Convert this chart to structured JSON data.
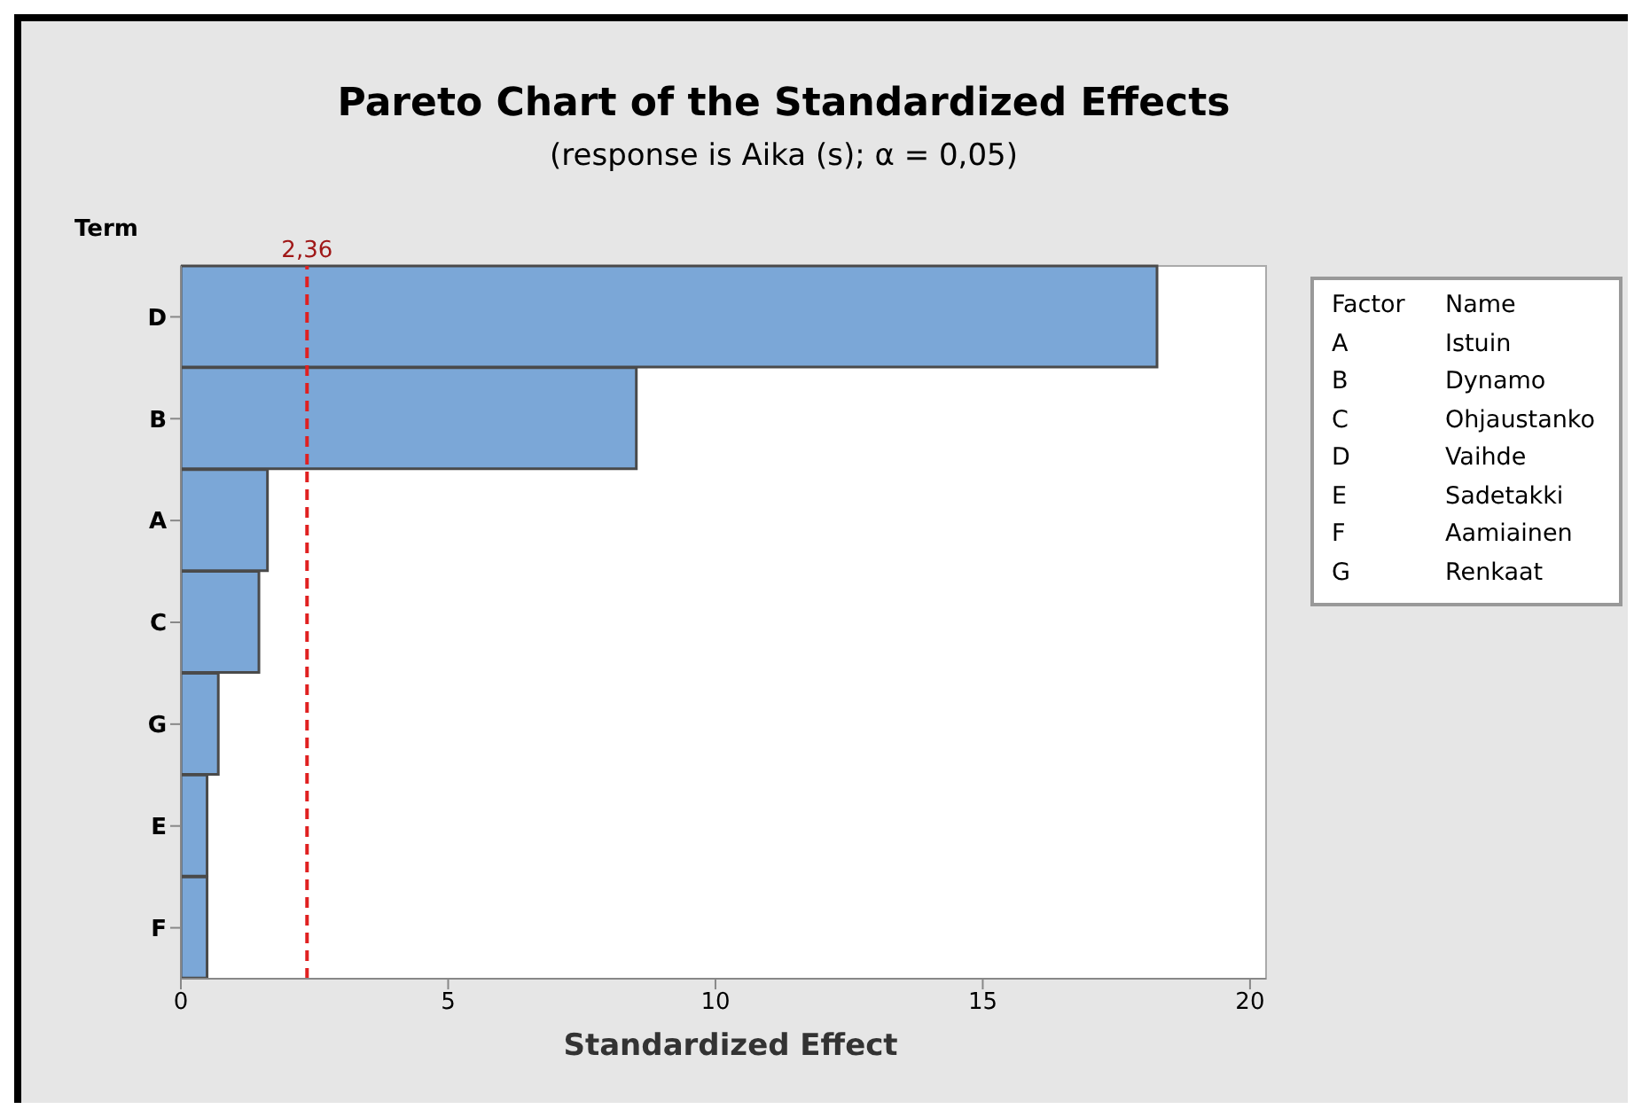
{
  "chart_data": {
    "type": "bar",
    "orientation": "horizontal",
    "title": "Pareto Chart of the Standardized Effects",
    "subtitle": "(response is Aika (s); α = 0,05)",
    "xlabel": "Standardized Effect",
    "ylabel": "Term",
    "categories": [
      "D",
      "B",
      "A",
      "C",
      "G",
      "E",
      "F"
    ],
    "values": [
      18.26,
      8.52,
      1.62,
      1.46,
      0.7,
      0.49,
      0.49
    ],
    "color": "#7ba7d7",
    "xlim": [
      0,
      20.3
    ],
    "xticks": [
      0,
      5,
      10,
      15,
      20
    ],
    "ref_lines": [
      {
        "axis": "x",
        "value": 2.36,
        "label": "2,36",
        "color": "#e02020",
        "line_style": "dashed"
      }
    ],
    "annotations": [
      "Factor",
      "Name",
      "A",
      "Istuin",
      "B",
      "Dynamo",
      "C",
      "Ohjaustanko",
      "D",
      "Vaihde",
      "E",
      "Sadetakki",
      "F",
      "Aamiainen",
      "G",
      "Renkaat"
    ]
  }
}
